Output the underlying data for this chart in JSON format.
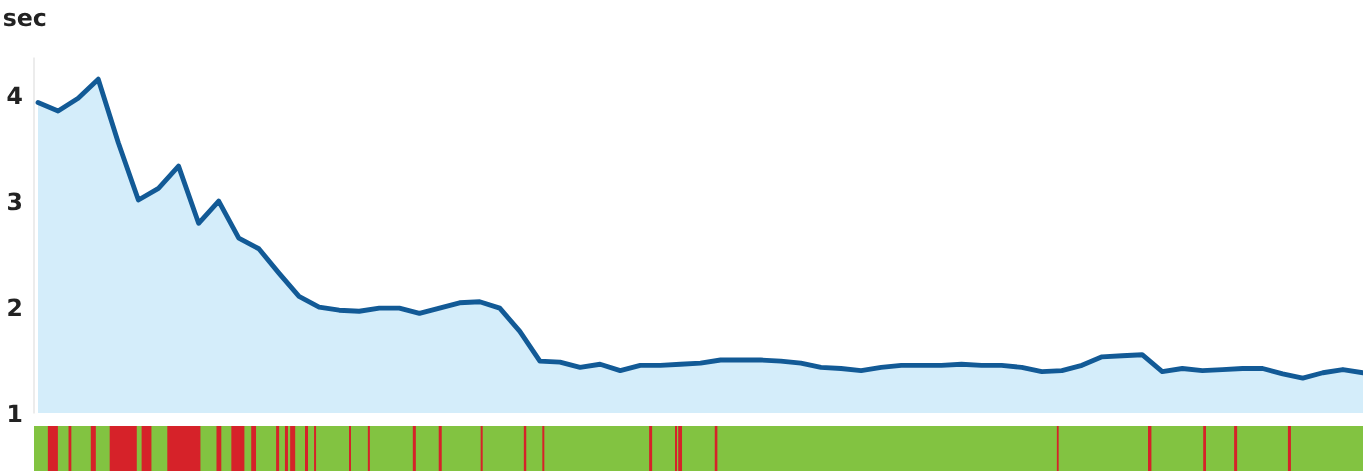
{
  "chart_data": {
    "type": "area",
    "ylabel": "sec",
    "categories": [
      null,
      null,
      null,
      null,
      null,
      null,
      null,
      null,
      null,
      null,
      null,
      null,
      null,
      null,
      null,
      null,
      null,
      null,
      null,
      null,
      null,
      null,
      null,
      null,
      null,
      null,
      null,
      null,
      null,
      null,
      null,
      null,
      null,
      null,
      null,
      null,
      null,
      null,
      null,
      null,
      null,
      null,
      null,
      null,
      null,
      null,
      null,
      null,
      null,
      null,
      null,
      null,
      null,
      null,
      null,
      null,
      null,
      null,
      null,
      null,
      null,
      null,
      null,
      null,
      null,
      null,
      null
    ],
    "series": [
      {
        "color": "#125a96",
        "values": [
          3.93,
          3.85,
          3.97,
          4.15,
          3.55,
          3.01,
          3.12,
          3.33,
          2.79,
          3.0,
          2.65,
          2.55,
          2.32,
          2.1,
          2.0,
          1.97,
          1.96,
          1.99,
          1.99,
          1.94,
          1.99,
          2.04,
          2.05,
          1.99,
          1.77,
          1.49,
          1.48,
          1.43,
          1.46,
          1.4,
          1.45,
          1.45,
          1.46,
          1.47,
          1.5,
          1.5,
          1.5,
          1.49,
          1.47,
          1.43,
          1.42,
          1.4,
          1.43,
          1.45,
          1.45,
          1.45,
          1.46,
          1.45,
          1.45,
          1.43,
          1.39,
          1.4,
          1.45,
          1.53,
          1.54,
          1.55,
          1.39,
          1.42,
          1.4,
          1.41,
          1.42,
          1.42,
          1.37,
          1.33,
          1.38,
          1.41,
          1.38
        ]
      }
    ],
    "ylim": [
      1,
      4.35
    ],
    "yticks": [
      1,
      2,
      3,
      4
    ],
    "grid": false,
    "legend": false
  }
}
